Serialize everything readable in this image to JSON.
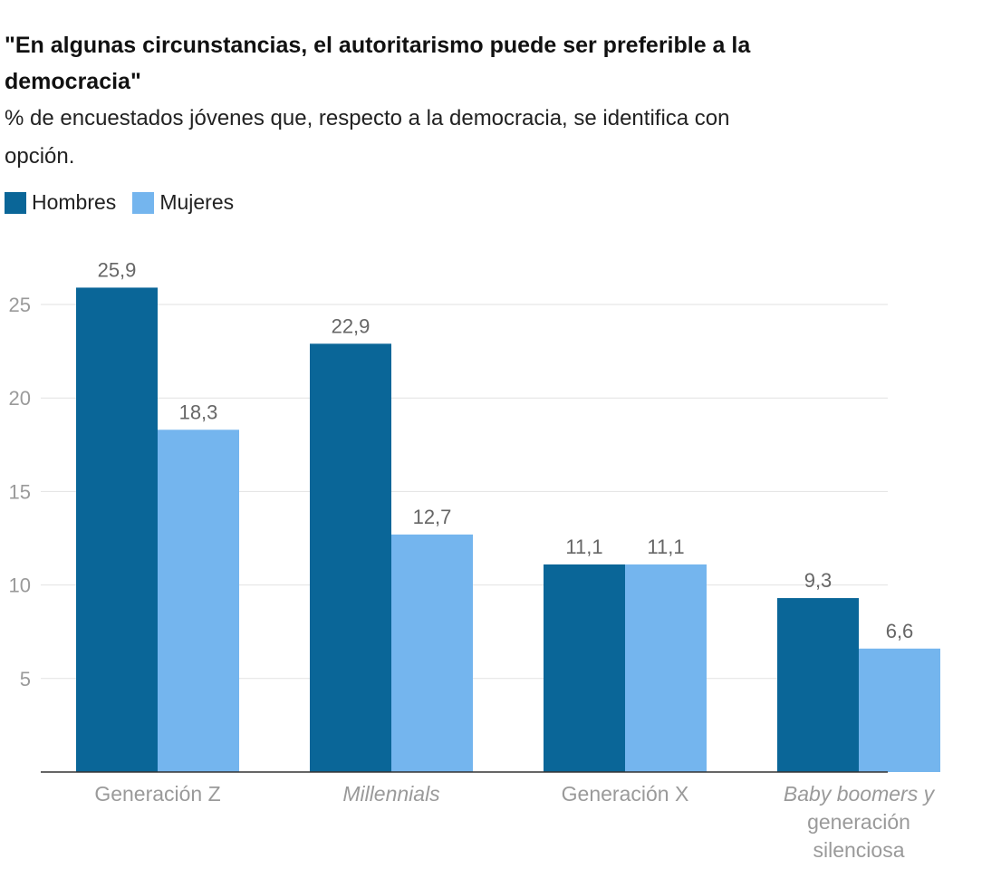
{
  "title_lines": [
    "\"En algunas circunstancias, el autoritarismo puede ser preferible a la",
    "democracia\""
  ],
  "subtitle_lines": [
    "% de encuestados jóvenes que, respecto a la democracia, se identifica con",
    "opción."
  ],
  "legend": [
    {
      "label": "Hombres",
      "color": "#0a6698"
    },
    {
      "label": "Mujeres",
      "color": "#74b5ee"
    }
  ],
  "chart_data": {
    "type": "bar",
    "categories": [
      [
        "Generación Z"
      ],
      [
        "Millennials"
      ],
      [
        "Generación X"
      ],
      [
        "Baby boomers y",
        "generación",
        "silenciosa"
      ]
    ],
    "category_italic": [
      false,
      true,
      false,
      true
    ],
    "series": [
      {
        "name": "Hombres",
        "values": [
          25.9,
          22.9,
          11.1,
          9.3
        ],
        "labels": [
          "25,9",
          "22,9",
          "11,1",
          "9,3"
        ],
        "color": "#0a6698"
      },
      {
        "name": "Mujeres",
        "values": [
          18.3,
          12.7,
          11.1,
          6.6
        ],
        "labels": [
          "18,3",
          "12,7",
          "11,1",
          "6,6"
        ],
        "color": "#74b5ee"
      }
    ],
    "yticks": [
      5,
      10,
      15,
      20,
      25
    ],
    "ylim": [
      0,
      25
    ],
    "grid": true,
    "legend_position": "top-left"
  }
}
